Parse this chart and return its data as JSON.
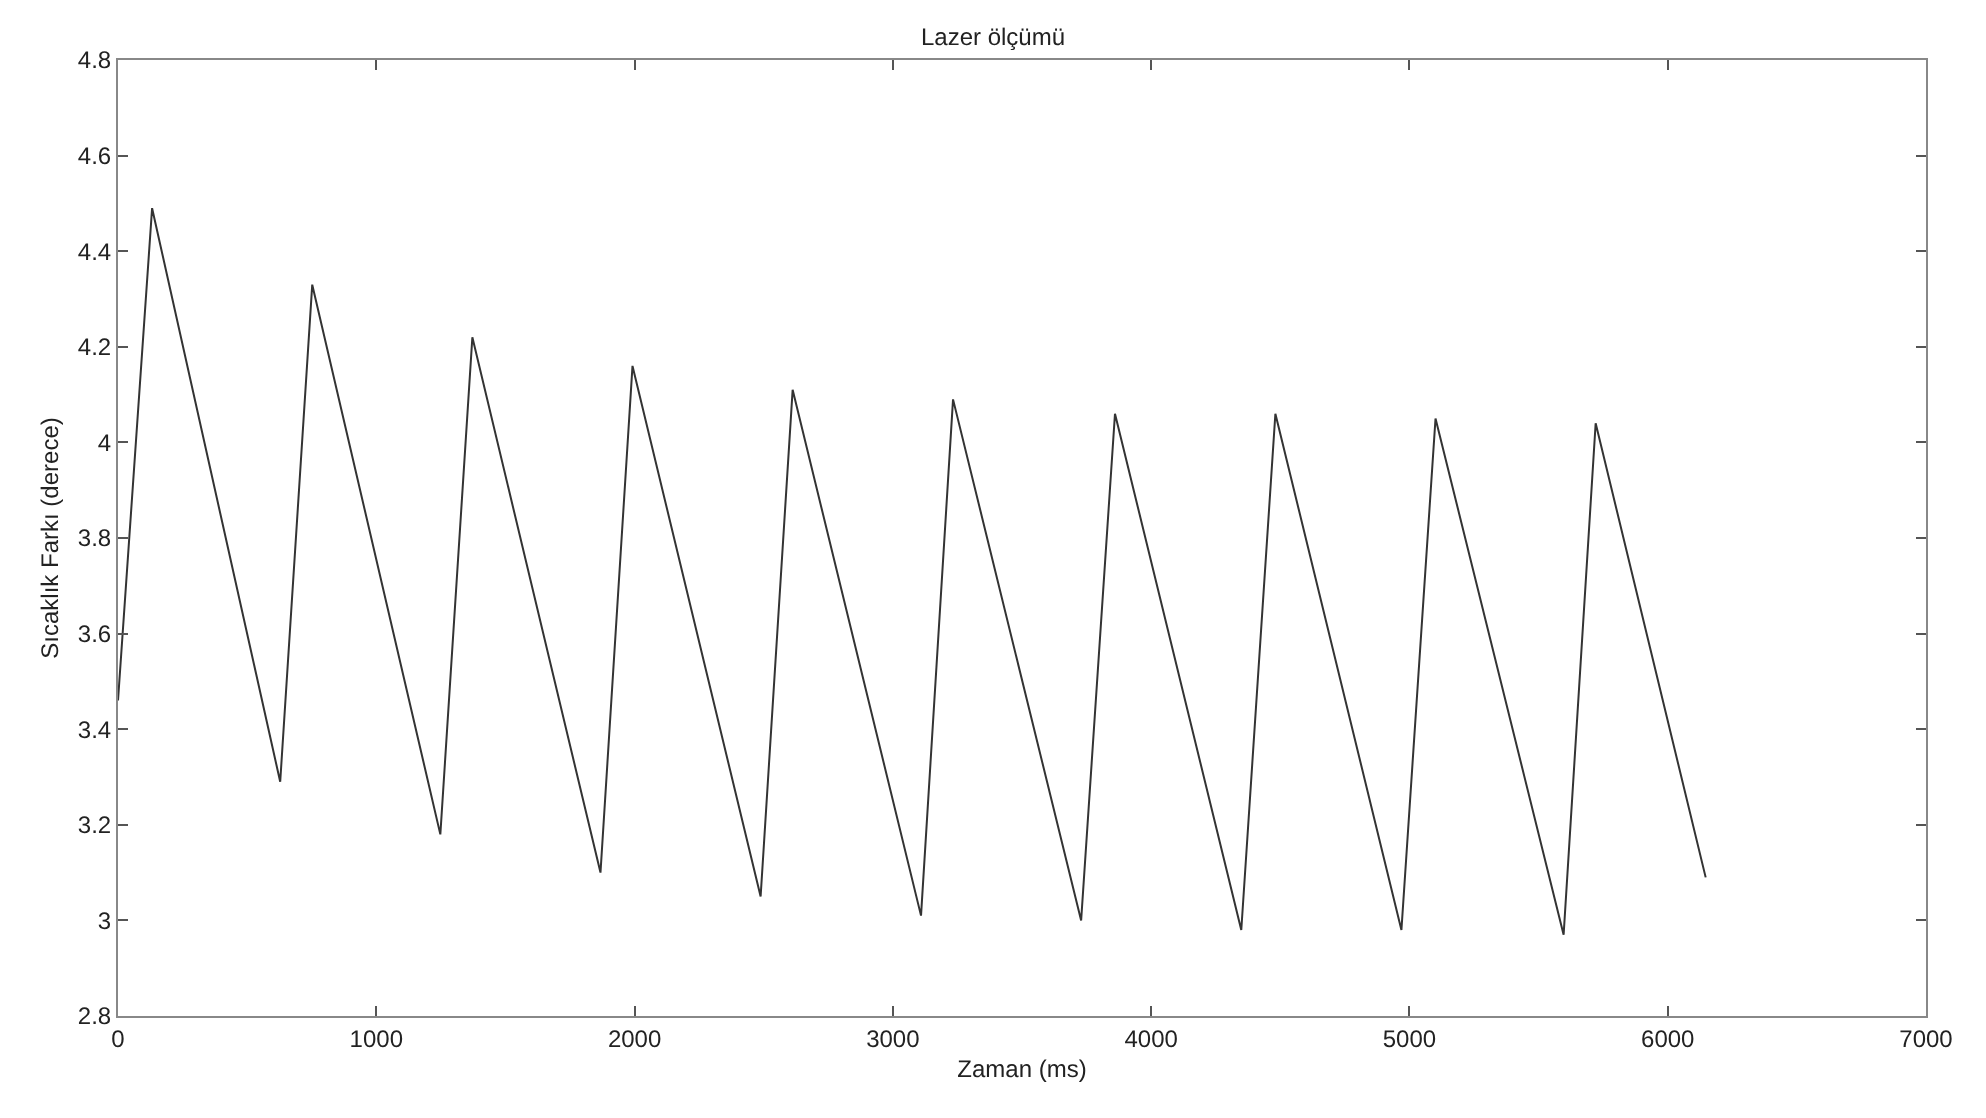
{
  "chart_data": {
    "type": "line",
    "title": "Lazer ölçümü",
    "xlabel": "Zaman (ms)",
    "ylabel": "Sıcaklık Farkı (derece)",
    "x": [
      0,
      132,
      628,
      752,
      1248,
      1372,
      1868,
      1992,
      2488,
      2612,
      3109,
      3233,
      3729,
      3860,
      4349,
      4481,
      4969,
      5101,
      5597,
      5721,
      6147
    ],
    "series": [
      {
        "color": "#333333",
        "values": [
          3.46,
          4.49,
          3.29,
          4.33,
          3.18,
          4.22,
          3.1,
          4.16,
          3.05,
          4.11,
          3.01,
          4.09,
          3.0,
          4.06,
          2.98,
          4.06,
          2.98,
          4.05,
          2.97,
          4.04,
          3.09
        ]
      }
    ],
    "xlim": [
      0,
      7000
    ],
    "xticks": [
      0,
      1000,
      2000,
      3000,
      4000,
      5000,
      6000,
      7000
    ],
    "ylim": [
      2.8,
      4.8
    ],
    "yticks": [
      2.8,
      3,
      3.2,
      3.4,
      3.6,
      3.8,
      4,
      4.2,
      4.4,
      4.6,
      4.8
    ],
    "marker": "none",
    "line_style": "solid"
  }
}
